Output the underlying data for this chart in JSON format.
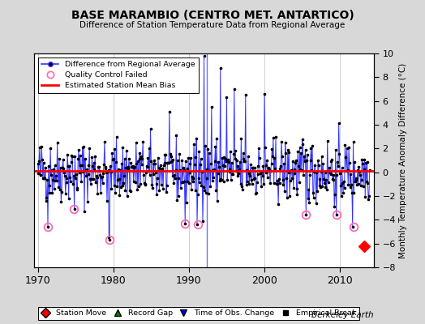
{
  "title": "BASE MARAMBIO (CENTRO MET. ANTARTICO)",
  "subtitle": "Difference of Station Temperature Data from Regional Average",
  "ylabel_right": "Monthly Temperature Anomaly Difference (°C)",
  "watermark": "Berkeley Earth",
  "ylim": [
    -8,
    10
  ],
  "yticks": [
    -8,
    -6,
    -4,
    -2,
    0,
    2,
    4,
    6,
    8,
    10
  ],
  "xlim": [
    1969.5,
    2014.5
  ],
  "xticks": [
    1970,
    1980,
    1990,
    2000,
    2010
  ],
  "mean_bias": 0.1,
  "bg_color": "#d8d8d8",
  "plot_bg_color": "#ffffff",
  "line_color": "#3333ff",
  "marker_color": "#000000",
  "bias_color": "#ff0000",
  "qc_color": "#ff69b4",
  "station_move_year": 2013.2,
  "station_move_value": -6.2,
  "time_obs_change_years": [
    1992.4
  ],
  "time_obs_change_values": [
    10.0
  ],
  "qc_failed_years": [
    1971.3,
    1974.8,
    1979.5,
    1989.5,
    1991.2,
    2005.5,
    2009.5,
    2011.8
  ],
  "qc_failed_values": [
    -4.6,
    -3.1,
    -5.7,
    -4.3,
    -4.4,
    -3.6,
    -3.6,
    -4.6
  ],
  "seed": 42
}
